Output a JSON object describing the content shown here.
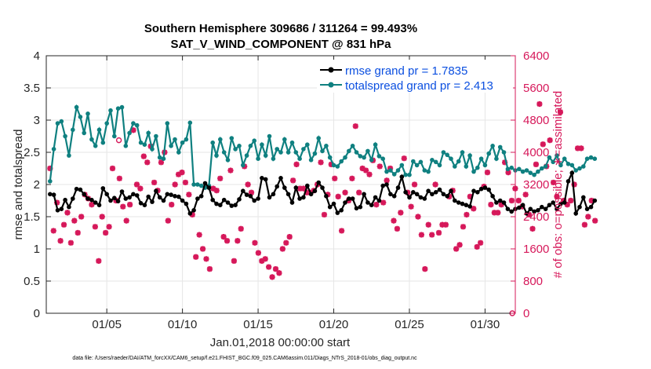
{
  "chart_data": {
    "type": "line",
    "title": "Southern Hemisphere 309686 / 311264 = 99.493%",
    "subtitle": "SAT_V_WIND_COMPONENT @ 831 hPa",
    "xlabel": "Jan.01,2018 00:00:00 start",
    "ylabel_left": "rmse and totalspread",
    "ylabel_right": "# of obs: o=possible; ∗=assimilated",
    "footer": "data file: /Users/raeder/DAI/ATM_forcXX/CAM6_setup/f.e21.FHIST_BGC.f09_025.CAM6assim.011/Diags_NTrS_2018-01/obs_diag_output.nc",
    "x_range_days": [
      1.0,
      32.0
    ],
    "x_ticks": [
      {
        "day": 5,
        "label": "01/05"
      },
      {
        "day": 10,
        "label": "01/10"
      },
      {
        "day": 15,
        "label": "01/15"
      },
      {
        "day": 20,
        "label": "01/20"
      },
      {
        "day": 25,
        "label": "01/25"
      },
      {
        "day": 30,
        "label": "01/30"
      }
    ],
    "ylim_left": [
      0,
      4
    ],
    "y_ticks_left": [
      "0",
      "0.5",
      "1",
      "1.5",
      "2",
      "2.5",
      "3",
      "3.5",
      "4"
    ],
    "ylim_right": [
      0,
      6400
    ],
    "y_ticks_right": [
      "0",
      "800",
      "1600",
      "2400",
      "3200",
      "4000",
      "4800",
      "5600",
      "6400"
    ],
    "x_start_day": 1.25,
    "x_step_day": 0.25,
    "series": [
      {
        "name": "rmse",
        "legend": "rmse grand pr = 1.7835",
        "color": "#000000",
        "values": [
          1.85,
          1.84,
          1.6,
          1.62,
          1.76,
          1.65,
          1.78,
          1.93,
          1.92,
          1.85,
          1.78,
          1.76,
          1.72,
          1.68,
          1.94,
          1.85,
          1.75,
          1.79,
          1.74,
          1.89,
          1.78,
          1.8,
          1.85,
          1.83,
          1.71,
          1.68,
          1.81,
          1.73,
          1.9,
          1.8,
          1.75,
          1.85,
          1.84,
          1.82,
          1.81,
          1.75,
          1.7,
          1.55,
          1.6,
          1.78,
          1.82,
          2.02,
          1.95,
          1.76,
          1.7,
          1.68,
          1.76,
          1.72,
          1.67,
          1.68,
          1.77,
          1.9,
          1.84,
          1.82,
          1.75,
          1.78,
          2.1,
          2.08,
          1.8,
          1.85,
          1.97,
          2.1,
          1.95,
          1.85,
          1.72,
          1.95,
          1.78,
          1.8,
          1.98,
          1.85,
          1.9,
          2.03,
          1.95,
          1.82,
          1.65,
          1.7,
          1.56,
          1.6,
          1.72,
          1.78,
          1.78,
          1.63,
          1.65,
          1.85,
          1.72,
          1.68,
          1.8,
          1.75,
          1.98,
          2.0,
          1.85,
          1.82,
          1.95,
          2.12,
          1.88,
          1.8,
          1.88,
          1.85,
          1.8,
          1.78,
          1.9,
          1.85,
          1.88,
          1.92,
          1.85,
          1.82,
          1.9,
          1.75,
          1.72,
          1.7,
          1.68,
          1.66,
          1.9,
          1.88,
          1.93,
          1.95,
          1.92,
          1.82,
          1.72,
          1.75,
          1.72,
          1.62,
          1.58,
          1.62,
          1.64,
          1.68,
          1.55,
          1.62,
          1.58,
          1.6,
          1.65,
          1.62,
          1.68,
          1.72,
          1.62,
          1.7,
          1.72,
          2.05,
          2.18,
          1.55,
          1.65,
          1.8,
          1.62,
          1.65,
          1.75
        ]
      },
      {
        "name": "totalspread",
        "legend": "totalspread grand pr = 2.413",
        "color": "#0f8080",
        "values": [
          2.05,
          2.55,
          2.95,
          2.98,
          2.75,
          2.45,
          2.85,
          3.2,
          3.05,
          2.8,
          3.1,
          2.7,
          2.6,
          2.85,
          2.65,
          2.95,
          3.15,
          2.75,
          3.18,
          3.2,
          2.6,
          2.8,
          2.95,
          2.92,
          2.65,
          2.62,
          2.8,
          2.55,
          2.75,
          2.42,
          2.4,
          2.95,
          2.6,
          2.7,
          2.5,
          2.65,
          2.7,
          2.96,
          2.0,
          2.0,
          1.98,
          1.95,
          1.98,
          2.65,
          2.45,
          2.7,
          2.5,
          2.38,
          2.72,
          2.55,
          2.6,
          2.3,
          2.45,
          2.6,
          2.68,
          2.4,
          2.62,
          2.45,
          2.75,
          2.4,
          2.55,
          2.5,
          2.7,
          2.5,
          2.65,
          2.5,
          2.4,
          2.55,
          2.62,
          2.38,
          2.48,
          2.72,
          2.52,
          2.6,
          2.42,
          2.3,
          2.28,
          2.36,
          2.42,
          2.52,
          2.6,
          2.5,
          2.44,
          2.42,
          2.52,
          2.38,
          2.62,
          2.44,
          2.4,
          2.2,
          2.22,
          2.16,
          2.22,
          2.3,
          2.15,
          2.15,
          2.36,
          2.3,
          2.35,
          2.22,
          2.2,
          2.38,
          2.35,
          2.3,
          2.5,
          2.46,
          2.4,
          2.28,
          2.36,
          2.5,
          2.28,
          2.45,
          2.2,
          2.26,
          2.4,
          2.3,
          2.48,
          2.6,
          2.4,
          2.58,
          2.5,
          2.24,
          2.26,
          2.22,
          2.24,
          2.2,
          2.22,
          2.18,
          2.15,
          2.2,
          2.25,
          2.28,
          2.42,
          2.35,
          2.45,
          2.3,
          2.4,
          2.32,
          2.3,
          2.22,
          2.25,
          2.28,
          2.4,
          2.42,
          2.4
        ]
      }
    ],
    "obs_possible": [
      {
        "day": 5.8,
        "count": 4300
      },
      {
        "day": 30.5,
        "count": 5800
      },
      {
        "day": 31.8,
        "count": 0
      }
    ],
    "obs_assimilated": {
      "name": "# assimilated",
      "color": "#d6185a",
      "values": [
        3600,
        2050,
        2750,
        1800,
        2200,
        2500,
        1750,
        2300,
        2000,
        2400,
        2950,
        2850,
        2700,
        2150,
        1300,
        2400,
        2000,
        2150,
        3600,
        2800,
        3350,
        2650,
        2300,
        2700,
        4550,
        3200,
        3100,
        3900,
        3750,
        4150,
        3250,
        3050,
        3750,
        4000,
        2300,
        2700,
        3200,
        3450,
        3500,
        3250,
        2950,
        2450,
        1400,
        1950,
        1600,
        1350,
        1100,
        3100,
        3050,
        3350,
        1900,
        1800,
        3550,
        1300,
        1800,
        2100,
        3650,
        3200,
        3000,
        1750,
        1500,
        1300,
        1350,
        1150,
        900,
        1100,
        1000,
        1600,
        1750,
        1900,
        3300,
        3700,
        3100,
        3100,
        3000,
        3000,
        3050,
        3200,
        3750,
        2450,
        2950,
        3700,
        3350,
        2900,
        2050,
        3000,
        2800,
        3350,
        4650,
        3000,
        3600,
        3550,
        3450,
        3800,
        2700,
        3650,
        2750,
        3300,
        3600,
        2300,
        2100,
        2500,
        3850,
        3000,
        2650,
        3200,
        2400,
        1950,
        1100,
        2200,
        1950,
        3200,
        2000,
        2200,
        2200,
        2900,
        3050,
        1600,
        1700,
        2150,
        2450,
        2900,
        2600,
        1650,
        1750,
        3150,
        3500,
        2700,
        2500,
        2500,
        2700,
        3750,
        3500,
        2800,
        3100,
        2800,
        2650,
        2950,
        2450,
        2100,
        3700,
        5200,
        4200,
        3650,
        4300,
        3250,
        2900,
        5000,
        2800,
        2700,
        2800,
        3200,
        4100,
        4100,
        2200,
        2400,
        2800,
        2300
      ]
    }
  }
}
